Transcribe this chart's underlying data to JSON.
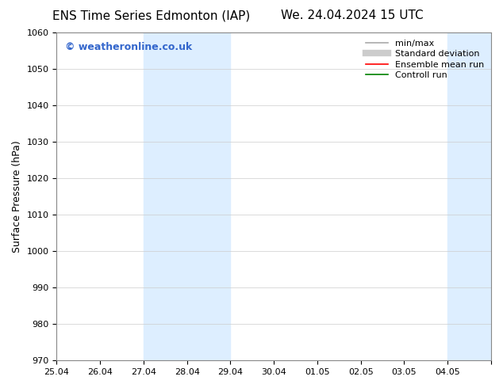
{
  "title_left": "ENS Time Series Edmonton (IAP)",
  "title_right": "We. 24.04.2024 15 UTC",
  "ylabel": "Surface Pressure (hPa)",
  "ylim": [
    970,
    1060
  ],
  "yticks": [
    970,
    980,
    990,
    1000,
    1010,
    1020,
    1030,
    1040,
    1050,
    1060
  ],
  "xlim": [
    0,
    10
  ],
  "xtick_positions": [
    0,
    1,
    2,
    3,
    4,
    5,
    6,
    7,
    8,
    9,
    10
  ],
  "xtick_labels": [
    "25.04",
    "26.04",
    "27.04",
    "28.04",
    "29.04",
    "30.04",
    "01.05",
    "02.05",
    "03.05",
    "04.05",
    ""
  ],
  "shaded_regions": [
    {
      "start": 2.0,
      "end": 4.0
    },
    {
      "start": 9.0,
      "end": 10.0
    }
  ],
  "shaded_color": "#ddeeff",
  "watermark_text": "© weatheronline.co.uk",
  "watermark_color": "#3366cc",
  "legend_items": [
    {
      "label": "min/max",
      "color": "#aaaaaa",
      "lw": 1.2,
      "style": "solid"
    },
    {
      "label": "Standard deviation",
      "color": "#cccccc",
      "lw": 6,
      "style": "solid"
    },
    {
      "label": "Ensemble mean run",
      "color": "#ff0000",
      "lw": 1.2,
      "style": "solid"
    },
    {
      "label": "Controll run",
      "color": "#008000",
      "lw": 1.2,
      "style": "solid"
    }
  ],
  "bg_color": "#ffffff",
  "grid_color": "#cccccc",
  "title_fontsize": 11,
  "axis_label_fontsize": 9,
  "tick_fontsize": 8,
  "watermark_fontsize": 9,
  "legend_fontsize": 8
}
